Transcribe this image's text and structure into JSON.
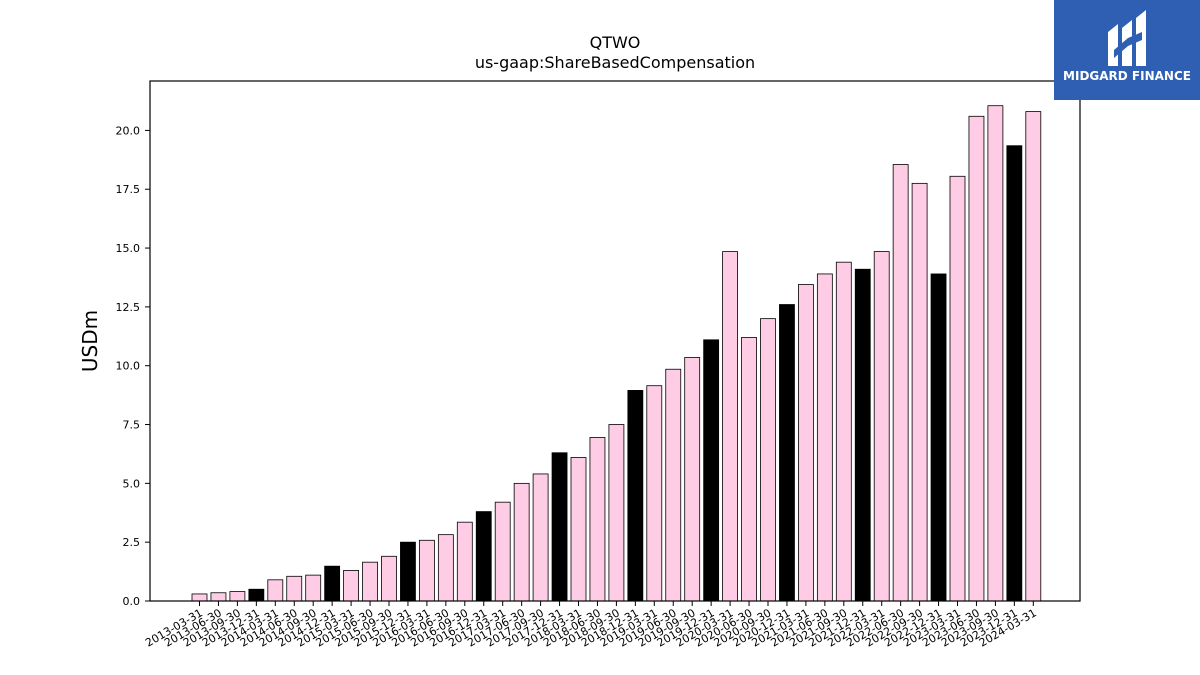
{
  "chart_data": {
    "type": "bar",
    "title": "QTWO",
    "subtitle": "us-gaap:ShareBasedCompensation",
    "xlabel": "",
    "ylabel": "USDm",
    "ylim": [
      0,
      22.1
    ],
    "yticks": [
      "0.0",
      "2.5",
      "5.0",
      "7.5",
      "10.0",
      "12.5",
      "15.0",
      "17.5",
      "20.0"
    ],
    "grid": false,
    "colors": {
      "quarter": "#ffcce6",
      "fiscal_year_end": "#000000",
      "edge": "#000000"
    },
    "categories": [
      "2013-03-31",
      "2013-06-30",
      "2013-09-30",
      "2013-12-31",
      "2014-03-31",
      "2014-06-30",
      "2014-09-30",
      "2014-12-31",
      "2015-03-31",
      "2015-06-30",
      "2015-09-30",
      "2015-12-31",
      "2016-03-31",
      "2016-06-30",
      "2016-09-30",
      "2016-12-31",
      "2017-03-31",
      "2017-06-30",
      "2017-09-30",
      "2017-12-31",
      "2018-03-31",
      "2018-06-30",
      "2018-09-30",
      "2018-12-31",
      "2019-03-31",
      "2019-06-30",
      "2019-09-30",
      "2019-12-31",
      "2020-03-31",
      "2020-06-30",
      "2020-09-30",
      "2020-12-31",
      "2021-03-31",
      "2021-06-30",
      "2021-09-30",
      "2021-12-31",
      "2022-03-31",
      "2022-06-30",
      "2022-09-30",
      "2022-12-31",
      "2023-03-31",
      "2023-06-30",
      "2023-09-30",
      "2023-12-31",
      "2024-03-31"
    ],
    "values": [
      0.3,
      0.35,
      0.4,
      0.5,
      0.9,
      1.05,
      1.1,
      1.48,
      1.3,
      1.65,
      1.9,
      2.5,
      2.58,
      2.82,
      3.35,
      3.8,
      4.2,
      5.0,
      5.4,
      6.3,
      6.1,
      6.95,
      7.5,
      8.95,
      9.15,
      9.85,
      10.35,
      11.1,
      14.85,
      11.2,
      12.0,
      12.6,
      13.45,
      13.9,
      14.4,
      14.1,
      14.85,
      18.55,
      17.75,
      13.9,
      18.05,
      20.6,
      21.05,
      19.35,
      20.8
    ],
    "highlight": [
      false,
      false,
      false,
      true,
      false,
      false,
      false,
      true,
      false,
      false,
      false,
      true,
      false,
      false,
      false,
      true,
      false,
      false,
      false,
      true,
      false,
      false,
      false,
      true,
      false,
      false,
      false,
      true,
      false,
      false,
      false,
      true,
      false,
      false,
      false,
      true,
      false,
      false,
      false,
      true,
      false,
      false,
      false,
      true,
      false
    ]
  },
  "logo": {
    "text": "MIDGARD FINANCE",
    "icon": "midgard-logo-icon"
  }
}
